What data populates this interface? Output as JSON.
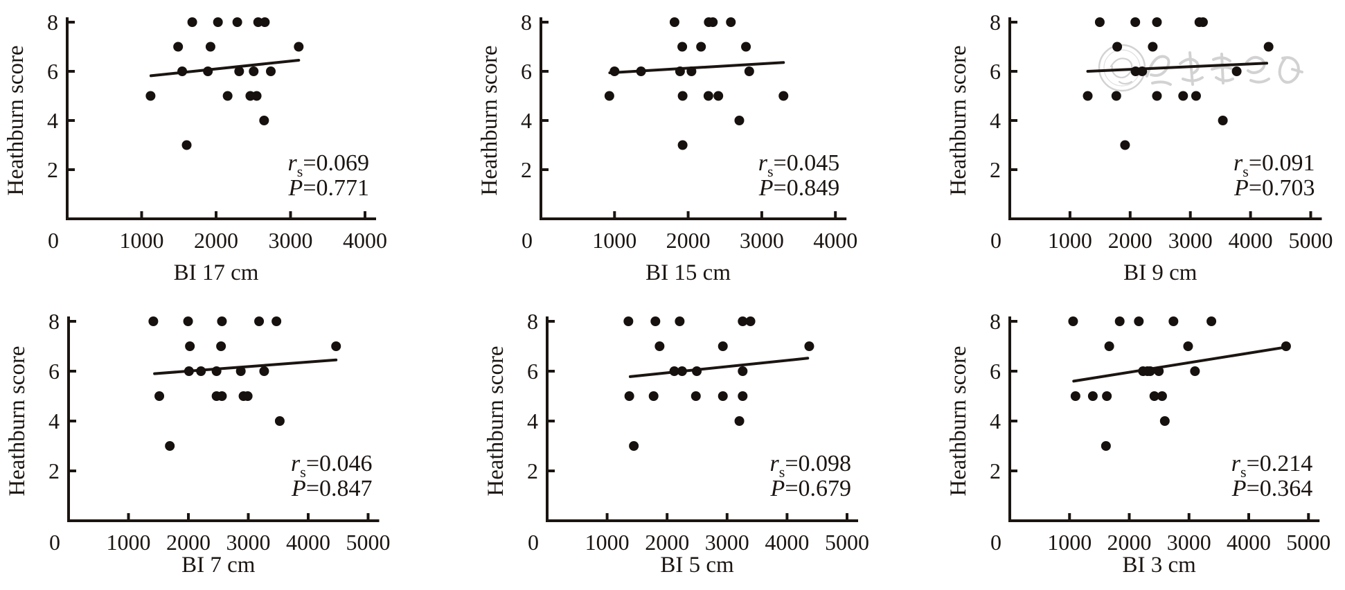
{
  "shared": {
    "y_axis_label": "Heathburn score",
    "r_symbol": "r",
    "r_subscript": "s",
    "equals": "=",
    "p_symbol": "P",
    "colors": {
      "ink": "#1b1512",
      "dot": "#16100e",
      "watermark": "#c8c8c8",
      "background": "#ffffff"
    }
  },
  "watermark": {
    "on_chart_index": 2,
    "style": "circular seal with calligraphy script",
    "color": "#c8c8c8"
  },
  "chart_data": [
    {
      "type": "scatter",
      "xlabel": "BI 17 cm",
      "ylabel": "Heathburn score",
      "x_ticks": [
        0,
        1000,
        2000,
        3000,
        4000
      ],
      "xlim": [
        0,
        4000
      ],
      "y_ticks": [
        2,
        4,
        6,
        8
      ],
      "ylim": [
        0,
        8.2
      ],
      "grid": false,
      "stats": {
        "rs": "0.069",
        "p": "0.771"
      },
      "trend_line": {
        "x1": 1125,
        "y1": 5.82,
        "x2": 3110,
        "y2": 6.45
      },
      "points": [
        [
          1680,
          8
        ],
        [
          2025,
          8
        ],
        [
          2285,
          8
        ],
        [
          2565,
          8
        ],
        [
          2655,
          8
        ],
        [
          1490,
          7
        ],
        [
          1925,
          7
        ],
        [
          3110,
          7
        ],
        [
          1545,
          6
        ],
        [
          1890,
          6
        ],
        [
          2310,
          6
        ],
        [
          2505,
          6
        ],
        [
          2735,
          6
        ],
        [
          1120,
          5
        ],
        [
          2155,
          5
        ],
        [
          2460,
          5
        ],
        [
          2545,
          5
        ],
        [
          2645,
          4
        ],
        [
          1605,
          3
        ]
      ]
    },
    {
      "type": "scatter",
      "xlabel": "BI 15 cm",
      "ylabel": "Heathburn score",
      "x_ticks": [
        0,
        1000,
        2000,
        3000,
        4000
      ],
      "xlim": [
        0,
        4000
      ],
      "y_ticks": [
        2,
        4,
        6,
        8
      ],
      "ylim": [
        0,
        8.2
      ],
      "grid": false,
      "stats": {
        "rs": "0.045",
        "p": "0.849"
      },
      "trend_line": {
        "x1": 935,
        "y1": 5.94,
        "x2": 3295,
        "y2": 6.36
      },
      "points": [
        [
          1815,
          8
        ],
        [
          2280,
          8
        ],
        [
          2335,
          8
        ],
        [
          2580,
          8
        ],
        [
          1920,
          7
        ],
        [
          2175,
          7
        ],
        [
          2785,
          7
        ],
        [
          1000,
          6
        ],
        [
          1360,
          6
        ],
        [
          1890,
          6
        ],
        [
          2045,
          6
        ],
        [
          2830,
          6
        ],
        [
          930,
          5
        ],
        [
          1925,
          5
        ],
        [
          2275,
          5
        ],
        [
          2410,
          5
        ],
        [
          3295,
          5
        ],
        [
          2695,
          4
        ],
        [
          1925,
          3
        ]
      ]
    },
    {
      "type": "scatter",
      "xlabel": "BI 9 cm",
      "ylabel": "Heathburn score",
      "x_ticks": [
        0,
        1000,
        2000,
        3000,
        4000,
        5000
      ],
      "xlim": [
        0,
        5000
      ],
      "y_ticks": [
        2,
        4,
        6,
        8
      ],
      "ylim": [
        0,
        8.2
      ],
      "grid": false,
      "stats": {
        "rs": "0.091",
        "p": "0.703"
      },
      "trend_line": {
        "x1": 1295,
        "y1": 6.0,
        "x2": 4270,
        "y2": 6.33
      },
      "points": [
        [
          1495,
          8
        ],
        [
          2085,
          8
        ],
        [
          2445,
          8
        ],
        [
          3150,
          8
        ],
        [
          3210,
          8
        ],
        [
          1785,
          7
        ],
        [
          2375,
          7
        ],
        [
          4300,
          7
        ],
        [
          2090,
          6
        ],
        [
          2200,
          6
        ],
        [
          3770,
          6
        ],
        [
          1295,
          5
        ],
        [
          1770,
          5
        ],
        [
          2445,
          5
        ],
        [
          2880,
          5
        ],
        [
          3095,
          5
        ],
        [
          3540,
          4
        ],
        [
          1915,
          3
        ]
      ]
    },
    {
      "type": "scatter",
      "xlabel": "BI 7 cm",
      "ylabel": "Heathburn score",
      "x_ticks": [
        0,
        1000,
        2000,
        3000,
        4000,
        5000
      ],
      "xlim": [
        0,
        5000
      ],
      "y_ticks": [
        2,
        4,
        6,
        8
      ],
      "ylim": [
        0,
        8.2
      ],
      "grid": false,
      "stats": {
        "rs": "0.046",
        "p": "0.847"
      },
      "trend_line": {
        "x1": 1435,
        "y1": 5.9,
        "x2": 4465,
        "y2": 6.45
      },
      "points": [
        [
          1415,
          8
        ],
        [
          1995,
          8
        ],
        [
          2560,
          8
        ],
        [
          3180,
          8
        ],
        [
          3470,
          8
        ],
        [
          2025,
          7
        ],
        [
          2545,
          7
        ],
        [
          4465,
          7
        ],
        [
          2010,
          6
        ],
        [
          2210,
          6
        ],
        [
          2470,
          6
        ],
        [
          2875,
          6
        ],
        [
          3265,
          6
        ],
        [
          1515,
          5
        ],
        [
          2470,
          5
        ],
        [
          2560,
          5
        ],
        [
          2920,
          5
        ],
        [
          2990,
          5
        ],
        [
          3525,
          4
        ],
        [
          1690,
          3
        ]
      ]
    },
    {
      "type": "scatter",
      "xlabel": "BI 5 cm",
      "ylabel": "Heathburn score",
      "x_ticks": [
        0,
        1000,
        2000,
        3000,
        4000,
        5000
      ],
      "xlim": [
        0,
        5000
      ],
      "y_ticks": [
        2,
        4,
        6,
        8
      ],
      "ylim": [
        0,
        8.2
      ],
      "grid": false,
      "stats": {
        "rs": "0.098",
        "p": "0.679"
      },
      "trend_line": {
        "x1": 1385,
        "y1": 5.78,
        "x2": 4345,
        "y2": 6.52
      },
      "points": [
        [
          1355,
          8
        ],
        [
          1805,
          8
        ],
        [
          2210,
          8
        ],
        [
          3260,
          8
        ],
        [
          3390,
          8
        ],
        [
          1875,
          7
        ],
        [
          2930,
          7
        ],
        [
          4370,
          7
        ],
        [
          2120,
          6
        ],
        [
          2250,
          6
        ],
        [
          2495,
          6
        ],
        [
          3260,
          6
        ],
        [
          1370,
          5
        ],
        [
          1775,
          5
        ],
        [
          2480,
          5
        ],
        [
          2930,
          5
        ],
        [
          3260,
          5
        ],
        [
          3205,
          4
        ],
        [
          1445,
          3
        ]
      ]
    },
    {
      "type": "scatter",
      "xlabel": "BI 3 cm",
      "ylabel": "Heathburn score",
      "x_ticks": [
        0,
        1000,
        2000,
        3000,
        4000,
        5000
      ],
      "xlim": [
        0,
        5000
      ],
      "y_ticks": [
        2,
        4,
        6,
        8
      ],
      "ylim": [
        0,
        8.2
      ],
      "grid": false,
      "stats": {
        "rs": "0.214",
        "p": "0.364"
      },
      "trend_line": {
        "x1": 1070,
        "y1": 5.6,
        "x2": 4640,
        "y2": 6.97
      },
      "points": [
        [
          1060,
          8
        ],
        [
          1840,
          8
        ],
        [
          2160,
          8
        ],
        [
          2740,
          8
        ],
        [
          3375,
          8
        ],
        [
          1665,
          7
        ],
        [
          2985,
          7
        ],
        [
          4625,
          7
        ],
        [
          2230,
          6
        ],
        [
          2305,
          6
        ],
        [
          2350,
          6
        ],
        [
          2495,
          6
        ],
        [
          3100,
          6
        ],
        [
          1100,
          5
        ],
        [
          1390,
          5
        ],
        [
          1625,
          5
        ],
        [
          2420,
          5
        ],
        [
          2550,
          5
        ],
        [
          2595,
          4
        ],
        [
          1610,
          3
        ]
      ]
    }
  ]
}
